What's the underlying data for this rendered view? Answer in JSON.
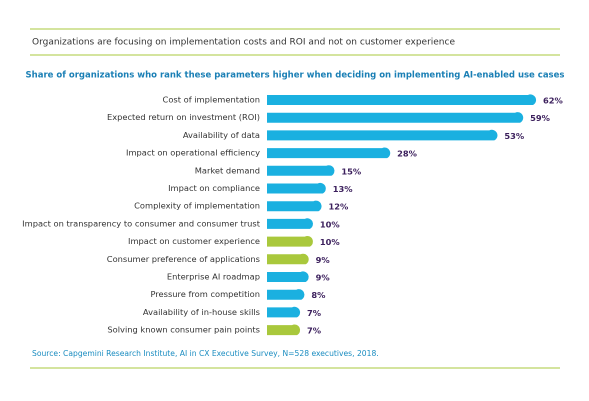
{
  "chart_data": {
    "type": "bar",
    "orientation": "horizontal",
    "header": "Organizations are focusing on implementation costs and ROI and not on customer experience",
    "title": "Share of organizations who rank these parameters higher when deciding on implementing AI-enabled use cases",
    "categories": [
      "Cost of implementation",
      "Expected return on investment (ROI)",
      "Availability of data",
      "Impact on operational efficiency",
      "Market demand",
      "Impact on compliance",
      "Complexity of implementation",
      "Impact on transparency to consumer and consumer trust",
      "Impact on customer experience",
      "Consumer preference of applications",
      "Enterprise AI roadmap",
      "Pressure from competition",
      "Availability of in-house skills",
      "Solving known consumer pain points"
    ],
    "values": [
      62,
      59,
      53,
      28,
      15,
      13,
      12,
      10,
      10,
      9,
      9,
      8,
      7,
      7
    ],
    "value_labels": [
      "62%",
      "59%",
      "53%",
      "28%",
      "15%",
      "13%",
      "12%",
      "10%",
      "10%",
      "9%",
      "9%",
      "8%",
      "7%",
      "7%"
    ],
    "colors": [
      "#1ab0e0",
      "#1ab0e0",
      "#1ab0e0",
      "#1ab0e0",
      "#1ab0e0",
      "#1ab0e0",
      "#1ab0e0",
      "#1ab0e0",
      "#a9c83c",
      "#a9c83c",
      "#1ab0e0",
      "#1ab0e0",
      "#1ab0e0",
      "#a9c83c"
    ],
    "source": "Source: Capgemini Research Institute, AI in CX Executive Survey, N=528 executives, 2018."
  }
}
